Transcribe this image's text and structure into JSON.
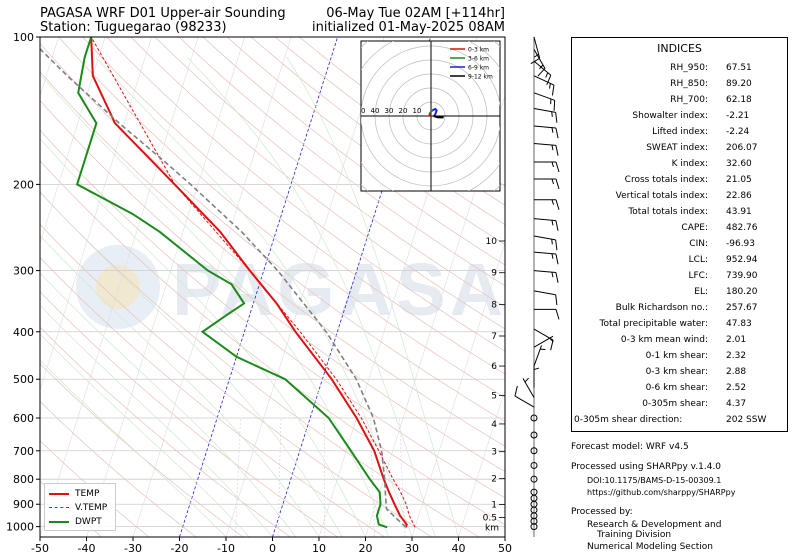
{
  "header": {
    "title_left": "PAGASA WRF D01 Upper-air Sounding",
    "station": "Station: Tuguegarao (98233)",
    "valid_time": "06-May Tue 02AM [+114hr]",
    "init_time": "initialized 01-May-2025 08AM"
  },
  "watermark": "PAGASA",
  "chart_data": {
    "type": "skew-t",
    "x_axis": {
      "label": "",
      "ticks": [
        -50,
        -40,
        -30,
        -20,
        -10,
        0,
        10,
        20,
        30,
        40,
        50
      ],
      "range": [
        -50,
        50
      ]
    },
    "y_axis": {
      "label": "",
      "scale": "log",
      "ticks": [
        100,
        200,
        300,
        400,
        500,
        600,
        700,
        800,
        900,
        1000
      ],
      "range": [
        1050,
        100
      ]
    },
    "height_axis": {
      "unit": "km",
      "ticks": [
        "0.5",
        "1",
        "2",
        "3",
        "4",
        "5",
        "6",
        "7",
        "8",
        "9",
        "10"
      ]
    },
    "series": [
      {
        "name": "TEMP",
        "color": "#e01010",
        "style": "solid",
        "points": [
          [
            1003,
            28
          ],
          [
            990,
            28
          ],
          [
            950,
            26
          ],
          [
            900,
            24
          ],
          [
            850,
            22
          ],
          [
            800,
            20
          ],
          [
            700,
            16
          ],
          [
            600,
            10
          ],
          [
            500,
            2
          ],
          [
            400,
            -9
          ],
          [
            350,
            -15
          ],
          [
            300,
            -23
          ],
          [
            250,
            -32
          ],
          [
            200,
            -45
          ],
          [
            150,
            -62
          ],
          [
            120,
            -70
          ],
          [
            100,
            -73
          ]
        ]
      },
      {
        "name": "V.TEMP",
        "color": "#e01010",
        "style": "dashed",
        "points": [
          [
            1003,
            30
          ],
          [
            950,
            28
          ],
          [
            900,
            26.5
          ],
          [
            850,
            24.5
          ],
          [
            800,
            22
          ],
          [
            700,
            17
          ],
          [
            600,
            11
          ],
          [
            500,
            3
          ],
          [
            400,
            -8
          ],
          [
            300,
            -23
          ],
          [
            200,
            -45
          ],
          [
            100,
            -73
          ]
        ]
      },
      {
        "name": "DWPT",
        "color": "#1a8a1a",
        "style": "solid",
        "points": [
          [
            1003,
            24
          ],
          [
            990,
            22
          ],
          [
            950,
            21
          ],
          [
            900,
            21
          ],
          [
            850,
            20
          ],
          [
            800,
            17
          ],
          [
            700,
            11
          ],
          [
            600,
            4
          ],
          [
            500,
            -8
          ],
          [
            450,
            -20
          ],
          [
            400,
            -29
          ],
          [
            370,
            -25
          ],
          [
            350,
            -22
          ],
          [
            320,
            -26
          ],
          [
            300,
            -32
          ],
          [
            250,
            -45
          ],
          [
            230,
            -52
          ],
          [
            200,
            -66
          ],
          [
            150,
            -66
          ],
          [
            130,
            -72
          ],
          [
            110,
            -73
          ],
          [
            100,
            -73
          ]
        ]
      },
      {
        "name": "parcel",
        "color": "#808080",
        "style": "dashed",
        "points": [
          [
            1003,
            28
          ],
          [
            950,
            24.6
          ],
          [
            920,
            22.6
          ],
          [
            900,
            22.2
          ],
          [
            850,
            21.2
          ],
          [
            800,
            20.2
          ],
          [
            700,
            17.6
          ],
          [
            600,
            13.6
          ],
          [
            500,
            7.3
          ],
          [
            400,
            -2.4
          ],
          [
            300,
            -17
          ],
          [
            250,
            -27.4
          ],
          [
            200,
            -41.6
          ],
          [
            180,
            -48.6
          ],
          [
            150,
            -61.1
          ],
          [
            120,
            -75.5
          ],
          [
            100,
            -86.6
          ]
        ]
      }
    ],
    "hodograph": {
      "rings": [
        "10",
        "20",
        "30",
        "40",
        "50"
      ],
      "legend": [
        {
          "label": "0-3 km",
          "color": "#e01010"
        },
        {
          "label": "3-6 km",
          "color": "#1a8a1a"
        },
        {
          "label": "6-9 km",
          "color": "#2020d0"
        },
        {
          "label": "9-12 km",
          "color": "#000000"
        }
      ],
      "segments": [
        {
          "layer": "0-3 km",
          "color": "#e01010",
          "uv": [
            [
              0,
              0
            ],
            [
              -1,
              1
            ],
            [
              -1,
              2
            ]
          ]
        },
        {
          "layer": "3-6 km",
          "color": "#1a8a1a",
          "uv": [
            [
              -1,
              2
            ],
            [
              0,
              3
            ],
            [
              1,
              4
            ]
          ]
        },
        {
          "layer": "6-9 km",
          "color": "#2020d0",
          "uv": [
            [
              1,
              4
            ],
            [
              3,
              5
            ],
            [
              4,
              4
            ],
            [
              3,
              1
            ],
            [
              2,
              0
            ]
          ]
        },
        {
          "layer": "9-12 km",
          "color": "#000000",
          "uv": [
            [
              2,
              0
            ],
            [
              5,
              -1
            ],
            [
              7,
              -1
            ],
            [
              9,
              -1
            ]
          ]
        }
      ]
    }
  },
  "legend": [
    {
      "label": "TEMP",
      "color": "#e01010",
      "style": "solid"
    },
    {
      "label": "V.TEMP",
      "color": "#e01010",
      "style": "dashed"
    },
    {
      "label": "DWPT",
      "color": "#1a8a1a",
      "style": "solid"
    }
  ],
  "indices": {
    "title": "INDICES",
    "rows": [
      {
        "key": "RH_950:",
        "value": "67.51"
      },
      {
        "key": "RH_850:",
        "value": "89.20"
      },
      {
        "key": "RH_700:",
        "value": "62.18"
      },
      {
        "key": "Showalter index:",
        "value": "-2.21"
      },
      {
        "key": "Lifted index:",
        "value": "-2.24"
      },
      {
        "key": "SWEAT index:",
        "value": "206.07"
      },
      {
        "key": "K index:",
        "value": "32.60"
      },
      {
        "key": "Cross totals index:",
        "value": "21.05"
      },
      {
        "key": "Vertical totals index:",
        "value": "22.86"
      },
      {
        "key": "Total totals index:",
        "value": "43.91"
      },
      {
        "key": "CAPE:",
        "value": "482.76"
      },
      {
        "key": "CIN:",
        "value": "-96.93"
      },
      {
        "key": "LCL:",
        "value": "952.94"
      },
      {
        "key": "LFC:",
        "value": "739.90"
      },
      {
        "key": "EL:",
        "value": "180.20"
      },
      {
        "key": "Bulk Richardson no.:",
        "value": "257.67"
      },
      {
        "key": "Total precipitable water:",
        "value": "47.83"
      },
      {
        "key": "0-3 km mean wind:",
        "value": "2.01"
      },
      {
        "key": "0-1 km shear:",
        "value": "2.32"
      },
      {
        "key": "0-3 km shear:",
        "value": "2.88"
      },
      {
        "key": "0-6 km shear:",
        "value": "2.52"
      },
      {
        "key": "0-305m shear:",
        "value": "4.37"
      },
      {
        "key": "0-305m shear direction:",
        "value": "202 SSW"
      }
    ]
  },
  "footer": {
    "model": "Forecast model: WRF v4.5",
    "processed_using": "Processed using SHARPpy v.1.4.0",
    "doi": "DOI:10.1175/BAMS-D-15-00309.1",
    "url": "https://github.com/sharppy/SHARPpy",
    "processed_by": "Processed by:",
    "division_line1": "Research & Development and",
    "division_line2": "Training Division",
    "section": "Numerical Modeling Section"
  },
  "wind_barbs": [
    {
      "p": 1000,
      "dir": 0,
      "spd": 0
    },
    {
      "p": 975,
      "dir": 0,
      "spd": 0
    },
    {
      "p": 950,
      "dir": 0,
      "spd": 0
    },
    {
      "p": 925,
      "dir": 0,
      "spd": 0
    },
    {
      "p": 900,
      "dir": 0,
      "spd": 0
    },
    {
      "p": 875,
      "dir": 0,
      "spd": 0
    },
    {
      "p": 850,
      "dir": 0,
      "spd": 0
    },
    {
      "p": 800,
      "dir": 0,
      "spd": 0
    },
    {
      "p": 750,
      "dir": 0,
      "spd": 0
    },
    {
      "p": 700,
      "dir": 0,
      "spd": 0
    },
    {
      "p": 650,
      "dir": 0,
      "spd": 0
    },
    {
      "p": 600,
      "dir": 0,
      "spd": 0
    },
    {
      "p": 570,
      "dir": 300,
      "spd": 10
    },
    {
      "p": 545,
      "dir": 330,
      "spd": 5
    },
    {
      "p": 520,
      "dir": 0,
      "spd": 5
    },
    {
      "p": 470,
      "dir": 20,
      "spd": 5
    },
    {
      "p": 430,
      "dir": 60,
      "spd": 5
    },
    {
      "p": 395,
      "dir": 120,
      "spd": 10
    },
    {
      "p": 360,
      "dir": 90,
      "spd": 10
    },
    {
      "p": 330,
      "dir": 100,
      "spd": 10
    },
    {
      "p": 300,
      "dir": 95,
      "spd": 15
    },
    {
      "p": 275,
      "dir": 95,
      "spd": 15
    },
    {
      "p": 255,
      "dir": 100,
      "spd": 15
    },
    {
      "p": 235,
      "dir": 95,
      "spd": 15
    },
    {
      "p": 215,
      "dir": 90,
      "spd": 15
    },
    {
      "p": 195,
      "dir": 90,
      "spd": 15
    },
    {
      "p": 180,
      "dir": 90,
      "spd": 15
    },
    {
      "p": 165,
      "dir": 95,
      "spd": 15
    },
    {
      "p": 152,
      "dir": 95,
      "spd": 15
    },
    {
      "p": 140,
      "dir": 100,
      "spd": 15
    },
    {
      "p": 130,
      "dir": 110,
      "spd": 15
    },
    {
      "p": 120,
      "dir": 115,
      "spd": 15
    },
    {
      "p": 112,
      "dir": 130,
      "spd": 15
    },
    {
      "p": 106,
      "dir": 150,
      "spd": 15
    },
    {
      "p": 100,
      "dir": 165,
      "spd": 15
    }
  ]
}
